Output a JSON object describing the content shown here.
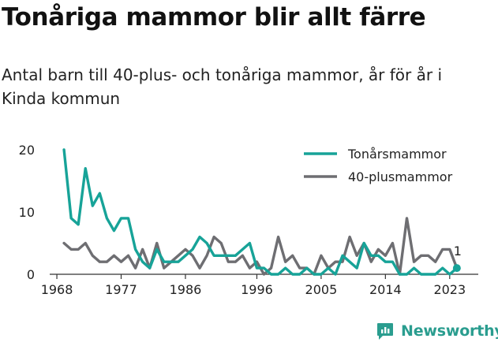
{
  "title": "Tonåriga mammor blir allt färre",
  "subtitle": "Antal barn till 40-plus- och tonåriga mammor, år för år i Kinda kommun",
  "brand": "Newsworthy",
  "colors": {
    "teen": "#17a398",
    "forty": "#6e6e72",
    "brand": "#2a9d8f"
  },
  "chart_data": {
    "type": "line",
    "x": [
      1969,
      1970,
      1971,
      1972,
      1973,
      1974,
      1975,
      1976,
      1977,
      1978,
      1979,
      1980,
      1981,
      1982,
      1983,
      1984,
      1985,
      1986,
      1987,
      1988,
      1989,
      1990,
      1991,
      1992,
      1993,
      1994,
      1995,
      1996,
      1997,
      1998,
      1999,
      2000,
      2001,
      2002,
      2003,
      2004,
      2005,
      2006,
      2007,
      2008,
      2009,
      2010,
      2011,
      2012,
      2013,
      2014,
      2015,
      2016,
      2017,
      2018,
      2019,
      2020,
      2021,
      2022,
      2023,
      2024
    ],
    "series": [
      {
        "name": "Tonårsmammor",
        "values": [
          20,
          9,
          8,
          17,
          11,
          13,
          9,
          7,
          9,
          9,
          4,
          2,
          1,
          4,
          2,
          2,
          2,
          3,
          4,
          6,
          5,
          3,
          3,
          3,
          3,
          4,
          5,
          1,
          1,
          0,
          0,
          1,
          0,
          0,
          1,
          0,
          0,
          1,
          0,
          3,
          2,
          1,
          5,
          3,
          3,
          2,
          2,
          0,
          0,
          1,
          0,
          0,
          0,
          1,
          0,
          1
        ]
      },
      {
        "name": "40-plusmammor",
        "values": [
          5,
          4,
          4,
          5,
          3,
          2,
          2,
          3,
          2,
          3,
          1,
          4,
          1,
          5,
          1,
          2,
          3,
          4,
          3,
          1,
          3,
          6,
          5,
          2,
          2,
          3,
          1,
          2,
          0,
          1,
          6,
          2,
          3,
          1,
          1,
          0,
          3,
          1,
          2,
          2,
          6,
          3,
          5,
          2,
          4,
          3,
          5,
          0,
          9,
          2,
          3,
          3,
          2,
          4,
          4,
          1
        ]
      }
    ],
    "y_ticks": [
      "20",
      "10",
      "0"
    ],
    "x_ticks": [
      "1968",
      "1977",
      "1986",
      "1996",
      "2005",
      "2014",
      "2023"
    ],
    "ylim": [
      0,
      20
    ],
    "last_label": "1",
    "legend_position": "top-right"
  }
}
